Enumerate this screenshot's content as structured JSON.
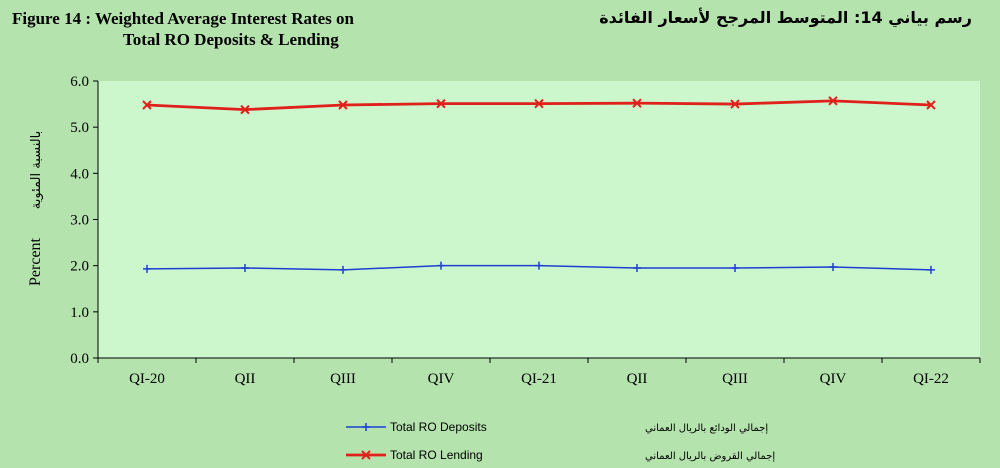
{
  "title": {
    "en_line1": "Figure 14 : Weighted Average Interest Rates on",
    "en_line2": "Total RO Deposits & Lending",
    "ar": "رسم بياني 14:   المتوسط المرجح لأسعار الفائدة"
  },
  "chart_data": {
    "type": "line",
    "categories": [
      "QI-20",
      "QII",
      "QIII",
      "QIV",
      "QI-21",
      "QII",
      "QIII",
      "QIV",
      "QI-22"
    ],
    "ylim": [
      0,
      6
    ],
    "yticks": [
      "0.0",
      "1.0",
      "2.0",
      "3.0",
      "4.0",
      "5.0",
      "6.0"
    ],
    "ylabel": "Percent",
    "ylabel_ar": "بالنسبة المئوية",
    "grid": false,
    "legend_position": "bottom-center",
    "series": [
      {
        "name": "Total RO Deposits",
        "name_ar": "إجمالي الودائع بالريال العماني",
        "color": "#1f3fd1",
        "marker": "plus",
        "values": [
          1.93,
          1.95,
          1.91,
          2.0,
          2.0,
          1.95,
          1.95,
          1.97,
          1.91
        ]
      },
      {
        "name": "Total RO Lending",
        "name_ar": "إجمالي القروض بالريال العماني",
        "color": "#e0201b",
        "marker": "x",
        "values": [
          5.48,
          5.38,
          5.48,
          5.51,
          5.51,
          5.52,
          5.5,
          5.57,
          5.48
        ]
      }
    ]
  }
}
